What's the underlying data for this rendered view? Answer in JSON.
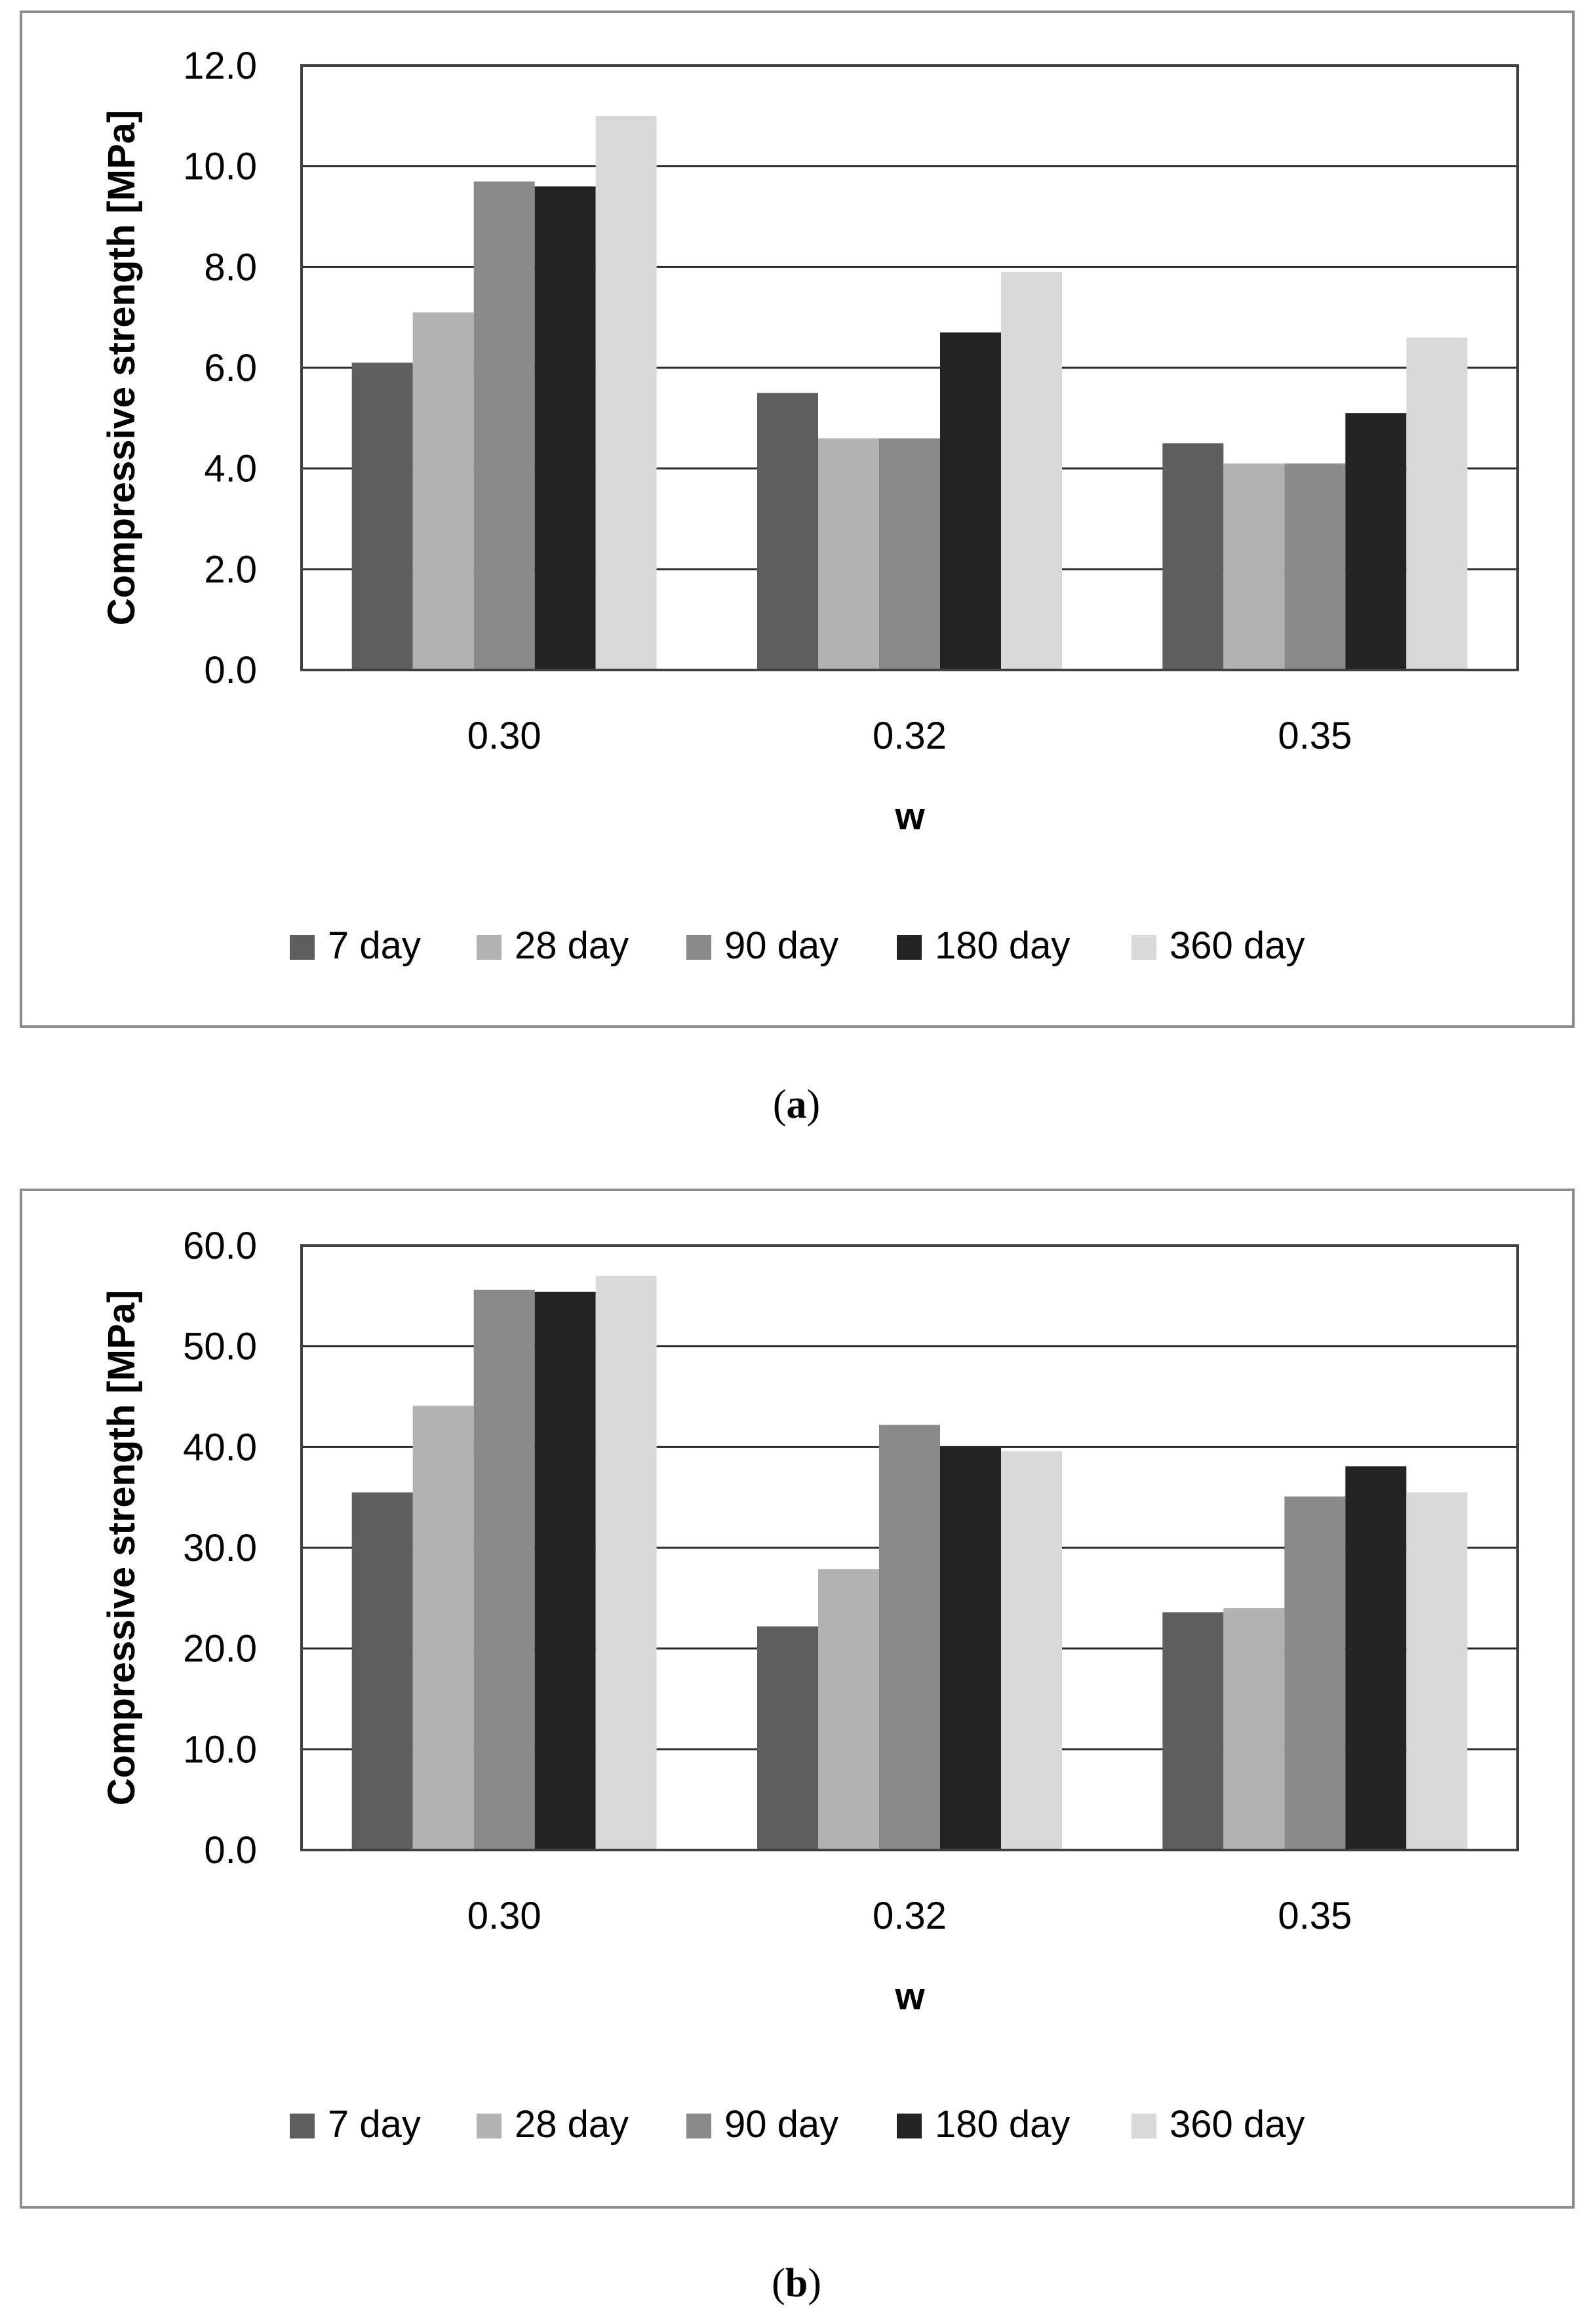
{
  "series_colors": [
    "#5e5e5e",
    "#b2b2b2",
    "#8a8a8a",
    "#232323",
    "#d9d9d9"
  ],
  "panels": [
    {
      "caption": {
        "open": "(",
        "letter": "a",
        "close": ")"
      },
      "ytick_labels": [
        "0.0",
        "2.0",
        "4.0",
        "6.0",
        "8.0",
        "10.0",
        "12.0"
      ]
    },
    {
      "caption": {
        "open": "(",
        "letter": "b",
        "close": ")"
      },
      "ytick_labels": [
        "0.0",
        "10.0",
        "20.0",
        "30.0",
        "40.0",
        "50.0",
        "60.0"
      ]
    }
  ],
  "chart_data": [
    {
      "type": "bar",
      "title": "",
      "xlabel": "w",
      "ylabel": "Compressive strength [MPa]",
      "ylim": [
        0,
        12
      ],
      "ytick_step": 2,
      "grid": true,
      "legend_position": "bottom",
      "categories": [
        "0.30",
        "0.32",
        "0.35"
      ],
      "series": [
        {
          "name": "7 day",
          "values": [
            6.1,
            5.5,
            4.5
          ]
        },
        {
          "name": "28 day",
          "values": [
            7.1,
            4.6,
            4.1
          ]
        },
        {
          "name": "90 day",
          "values": [
            9.7,
            4.6,
            4.1
          ]
        },
        {
          "name": "180 day",
          "values": [
            9.6,
            6.7,
            5.1
          ]
        },
        {
          "name": "360 day",
          "values": [
            11.0,
            7.9,
            6.6
          ]
        }
      ]
    },
    {
      "type": "bar",
      "title": "",
      "xlabel": "w",
      "ylabel": "Compressive strength [MPa]",
      "ylim": [
        0,
        60
      ],
      "ytick_step": 10,
      "grid": true,
      "legend_position": "bottom",
      "categories": [
        "0.30",
        "0.32",
        "0.35"
      ],
      "series": [
        {
          "name": "7 day",
          "values": [
            35.5,
            22.2,
            23.6
          ]
        },
        {
          "name": "28 day",
          "values": [
            44.1,
            27.9,
            24.0
          ]
        },
        {
          "name": "90 day",
          "values": [
            55.6,
            42.2,
            35.1
          ]
        },
        {
          "name": "180 day",
          "values": [
            55.4,
            40.0,
            38.1
          ]
        },
        {
          "name": "360 day",
          "values": [
            57.0,
            39.6,
            35.5
          ]
        }
      ]
    }
  ]
}
